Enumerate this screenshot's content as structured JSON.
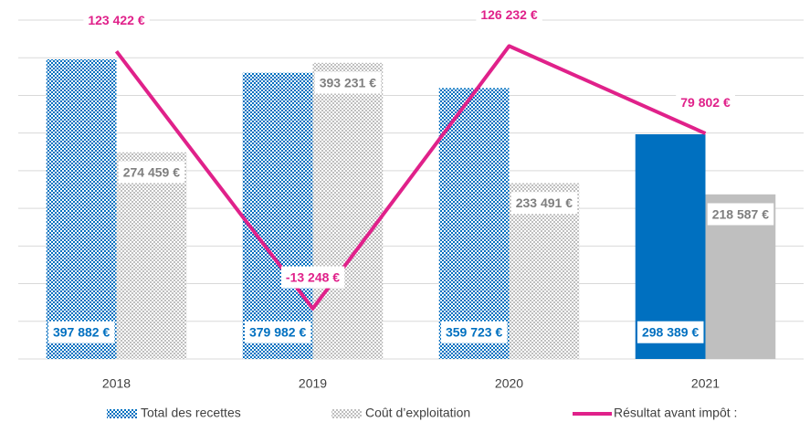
{
  "chart_data": {
    "type": "bar",
    "categories": [
      "2018",
      "2019",
      "2020",
      "2021"
    ],
    "series": [
      {
        "name": "Total des recettes",
        "color": "#0070c0",
        "patterned": [
          true,
          true,
          true,
          false
        ],
        "values": [
          397882,
          379982,
          359723,
          298389
        ],
        "value_labels": [
          "397 882 €",
          "379 982 €",
          "359 723 €",
          "298 389 €"
        ]
      },
      {
        "name": "Coût d’exploitation",
        "color": "#bfbfbf",
        "label_color": "#7f7f7f",
        "patterned": [
          true,
          true,
          true,
          false
        ],
        "values": [
          274459,
          393231,
          233491,
          218587
        ],
        "value_labels": [
          "274 459 €",
          "393 231 €",
          "233 491 €",
          "218 587 €"
        ]
      },
      {
        "name": "Résultat avant impôt :",
        "type": "line",
        "axis": "y2",
        "color": "#e0218a",
        "values": [
          123422,
          -13248,
          126232,
          79802
        ],
        "value_labels": [
          "123 422 €",
          "-13 248 €",
          "126 232 €",
          "79 802 €"
        ]
      }
    ],
    "ylim": [
      0,
      450000
    ],
    "yticks": [
      0,
      50000,
      100000,
      150000,
      200000,
      250000,
      300000,
      350000,
      400000,
      450000
    ],
    "y2lim": [
      -40000,
      140000
    ],
    "grid": true
  }
}
